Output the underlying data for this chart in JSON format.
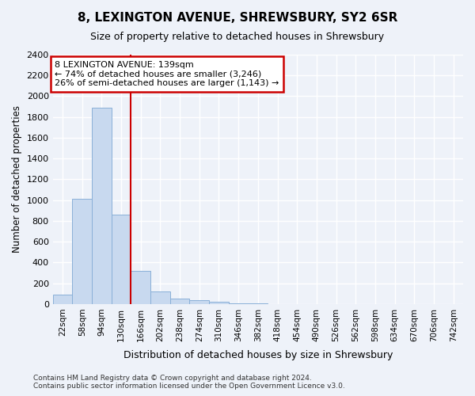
{
  "title": "8, LEXINGTON AVENUE, SHREWSBURY, SY2 6SR",
  "subtitle": "Size of property relative to detached houses in Shrewsbury",
  "xlabel": "Distribution of detached houses by size in Shrewsbury",
  "ylabel": "Number of detached properties",
  "bar_color": "#c8d9ef",
  "bar_edge_color": "#8ab0d8",
  "categories": [
    "22sqm",
    "58sqm",
    "94sqm",
    "130sqm",
    "166sqm",
    "202sqm",
    "238sqm",
    "274sqm",
    "310sqm",
    "346sqm",
    "382sqm",
    "418sqm",
    "454sqm",
    "490sqm",
    "526sqm",
    "562sqm",
    "598sqm",
    "634sqm",
    "670sqm",
    "706sqm",
    "742sqm"
  ],
  "values": [
    90,
    1010,
    1890,
    860,
    320,
    120,
    50,
    35,
    25,
    10,
    5,
    0,
    0,
    0,
    0,
    0,
    0,
    0,
    0,
    0,
    0
  ],
  "ylim": [
    0,
    2400
  ],
  "yticks": [
    0,
    200,
    400,
    600,
    800,
    1000,
    1200,
    1400,
    1600,
    1800,
    2000,
    2200,
    2400
  ],
  "property_label": "8 LEXINGTON AVENUE: 139sqm",
  "annotation_line1": "← 74% of detached houses are smaller (3,246)",
  "annotation_line2": "26% of semi-detached houses are larger (1,143) →",
  "annotation_box_color": "#ffffff",
  "annotation_box_edge_color": "#cc0000",
  "vline_index": 3.5,
  "footer_line1": "Contains HM Land Registry data © Crown copyright and database right 2024.",
  "footer_line2": "Contains public sector information licensed under the Open Government Licence v3.0.",
  "bg_color": "#eef2f9",
  "grid_color": "#ffffff"
}
